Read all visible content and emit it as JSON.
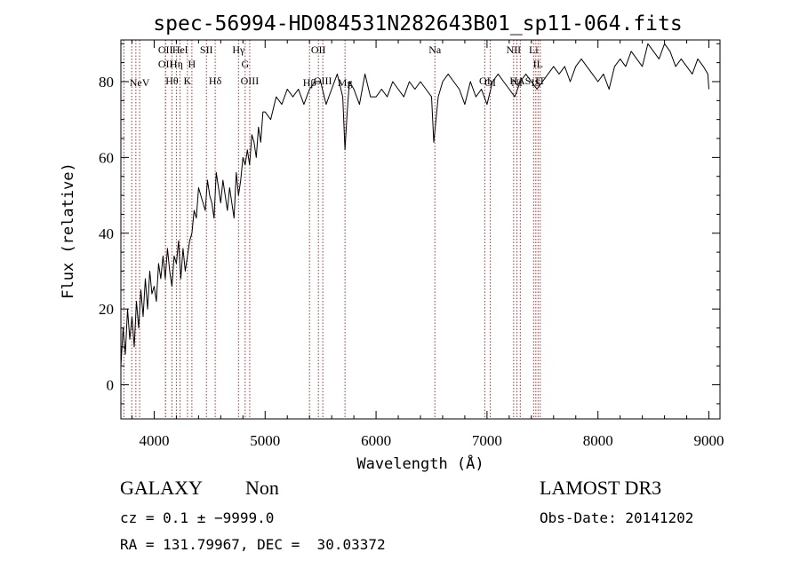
{
  "chart_data": {
    "type": "line",
    "title": "spec-56994-HD084531N282643B01_sp11-064.fits",
    "xlabel": "Wavelength (Å)",
    "ylabel": "Flux (relative)",
    "xlim": [
      3700,
      9100
    ],
    "ylim": [
      -9,
      91
    ],
    "xticks": [
      4000,
      5000,
      6000,
      7000,
      8000,
      9000
    ],
    "yticks": [
      0,
      20,
      40,
      60,
      80
    ],
    "grid": false,
    "series": [
      {
        "color": "#000000",
        "x": [
          3700,
          3720,
          3740,
          3760,
          3780,
          3800,
          3820,
          3840,
          3860,
          3880,
          3900,
          3920,
          3940,
          3960,
          3980,
          4000,
          4020,
          4040,
          4060,
          4080,
          4100,
          4120,
          4140,
          4160,
          4180,
          4200,
          4220,
          4240,
          4260,
          4280,
          4300,
          4320,
          4340,
          4360,
          4380,
          4400,
          4420,
          4440,
          4460,
          4480,
          4500,
          4520,
          4540,
          4560,
          4580,
          4600,
          4620,
          4640,
          4660,
          4680,
          4700,
          4720,
          4740,
          4760,
          4780,
          4800,
          4820,
          4840,
          4860,
          4880,
          4900,
          4920,
          4940,
          4960,
          4980,
          5000,
          5050,
          5100,
          5150,
          5200,
          5250,
          5300,
          5350,
          5400,
          5450,
          5500,
          5550,
          5600,
          5650,
          5700,
          5720,
          5740,
          5760,
          5800,
          5850,
          5900,
          5950,
          6000,
          6050,
          6100,
          6150,
          6200,
          6250,
          6300,
          6350,
          6400,
          6450,
          6500,
          6520,
          6540,
          6560,
          6600,
          6650,
          6700,
          6750,
          6800,
          6850,
          6900,
          6950,
          7000,
          7050,
          7100,
          7150,
          7200,
          7250,
          7300,
          7350,
          7400,
          7450,
          7500,
          7550,
          7600,
          7650,
          7700,
          7750,
          7800,
          7850,
          7900,
          7950,
          8000,
          8050,
          8100,
          8150,
          8200,
          8250,
          8300,
          8350,
          8400,
          8450,
          8500,
          8550,
          8600,
          8650,
          8700,
          8750,
          8800,
          8850,
          8900,
          8950,
          8990,
          9000
        ],
        "y": [
          5,
          15,
          8,
          20,
          12,
          18,
          10,
          22,
          15,
          25,
          18,
          28,
          20,
          30,
          24,
          26,
          22,
          32,
          28,
          34,
          28,
          36,
          30,
          26,
          34,
          32,
          38,
          28,
          36,
          30,
          34,
          38,
          40,
          46,
          44,
          52,
          50,
          48,
          46,
          54,
          50,
          48,
          44,
          56,
          52,
          48,
          54,
          50,
          46,
          52,
          48,
          44,
          56,
          50,
          54,
          60,
          58,
          62,
          58,
          66,
          64,
          60,
          68,
          64,
          72,
          72,
          70,
          76,
          74,
          78,
          76,
          78,
          74,
          78,
          80,
          80,
          74,
          78,
          82,
          76,
          62,
          72,
          80,
          78,
          74,
          82,
          76,
          76,
          78,
          76,
          80,
          78,
          76,
          80,
          78,
          80,
          78,
          76,
          64,
          70,
          76,
          80,
          82,
          80,
          78,
          74,
          80,
          76,
          78,
          74,
          80,
          82,
          80,
          78,
          76,
          80,
          82,
          80,
          78,
          80,
          82,
          84,
          82,
          84,
          80,
          84,
          86,
          84,
          82,
          80,
          82,
          78,
          84,
          86,
          84,
          88,
          86,
          84,
          90,
          88,
          86,
          90,
          88,
          84,
          86,
          84,
          82,
          86,
          84,
          82,
          78
        ]
      }
    ],
    "vlines": [
      {
        "x": 3727,
        "label": "",
        "row": 0
      },
      {
        "x": 3798,
        "label": "",
        "row": 0
      },
      {
        "x": 3835,
        "label": "",
        "row": 0
      },
      {
        "x": 3869,
        "label": "NeV",
        "row": 3
      },
      {
        "x": 4102,
        "label": "OII",
        "row": 1
      },
      {
        "x": 4102,
        "label": "OII",
        "row": 2
      },
      {
        "x": 4160,
        "label": "Hθ",
        "row": 4
      },
      {
        "x": 4200,
        "label": "Hη",
        "row": 2
      },
      {
        "x": 4233,
        "label": "Hel",
        "row": 1
      },
      {
        "x": 4300,
        "label": "K",
        "row": 4
      },
      {
        "x": 4340,
        "label": "H",
        "row": 2
      },
      {
        "x": 4471,
        "label": "SII",
        "row": 1
      },
      {
        "x": 4550,
        "label": "Hδ",
        "row": 4
      },
      {
        "x": 4760,
        "label": "Hγ",
        "row": 1
      },
      {
        "x": 4820,
        "label": "G",
        "row": 2
      },
      {
        "x": 4861,
        "label": "OIII",
        "row": 4
      },
      {
        "x": 5400,
        "label": "Hβ",
        "row": 3
      },
      {
        "x": 5480,
        "label": "OII",
        "row": 1
      },
      {
        "x": 5520,
        "label": "OIII",
        "row": 4
      },
      {
        "x": 5720,
        "label": "Mg",
        "row": 3
      },
      {
        "x": 6530,
        "label": "Na",
        "row": 1
      },
      {
        "x": 6980,
        "label": "OI",
        "row": 4
      },
      {
        "x": 7030,
        "label": "OI",
        "row": 3
      },
      {
        "x": 7240,
        "label": "NII",
        "row": 1
      },
      {
        "x": 7270,
        "label": "NI",
        "row": 3
      },
      {
        "x": 7300,
        "label": "HAS",
        "row": 4
      },
      {
        "x": 7420,
        "label": "Li",
        "row": 1
      },
      {
        "x": 7440,
        "label": "IS",
        "row": 3
      },
      {
        "x": 7460,
        "label": "IL",
        "row": 2
      },
      {
        "x": 7480,
        "label": "IT",
        "row": 4
      }
    ]
  },
  "info": {
    "object_type": "GALAXY",
    "object_subtype": "Non",
    "survey": "LAMOST DR3",
    "cz": "cz = 0.1 ± −9999.0",
    "obs_date": "Obs-Date: 20141202",
    "radec": "RA = 131.79967, DEC =  30.03372"
  },
  "colors": {
    "line_marker": "#b03030",
    "spectrum": "#000000"
  }
}
